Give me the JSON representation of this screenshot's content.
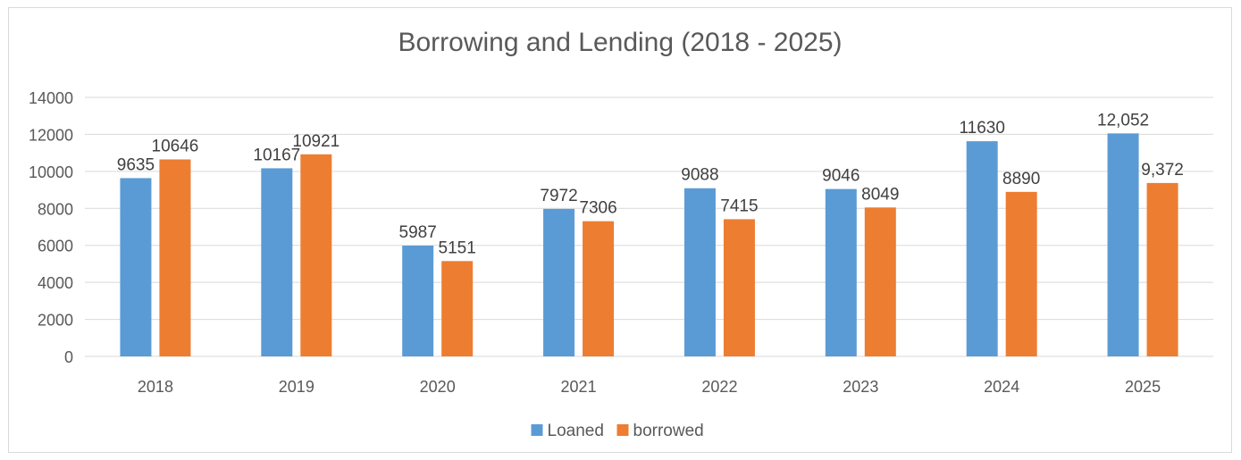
{
  "chart_data": {
    "type": "bar",
    "title": "Borrowing and Lending (2018 - 2025)",
    "xlabel": "",
    "ylabel": "",
    "ylim": [
      0,
      14000
    ],
    "yticks": [
      0,
      2000,
      4000,
      6000,
      8000,
      10000,
      12000,
      14000
    ],
    "ytick_labels": [
      "0",
      "2000",
      "4000",
      "6000",
      "8000",
      "10000",
      "12000",
      "14000"
    ],
    "grid": true,
    "legend_position": "bottom",
    "categories": [
      "2018",
      "2019",
      "2020",
      "2021",
      "2022",
      "2023",
      "2024",
      "2025"
    ],
    "series": [
      {
        "name": "Loaned",
        "color": "#5b9bd5",
        "values": [
          9635,
          10167,
          5987,
          7972,
          9088,
          9046,
          11630,
          12052
        ],
        "labels": [
          "9635",
          "10167",
          "5987",
          "7972",
          "9088",
          "9046",
          "11630",
          "12,052"
        ]
      },
      {
        "name": "borrowed",
        "color": "#ed7d31",
        "values": [
          10646,
          10921,
          5151,
          7306,
          7415,
          8049,
          8890,
          9372
        ],
        "labels": [
          "10646",
          "10921",
          "5151",
          "7306",
          "7415",
          "8049",
          "8890",
          "9,372"
        ]
      }
    ]
  }
}
